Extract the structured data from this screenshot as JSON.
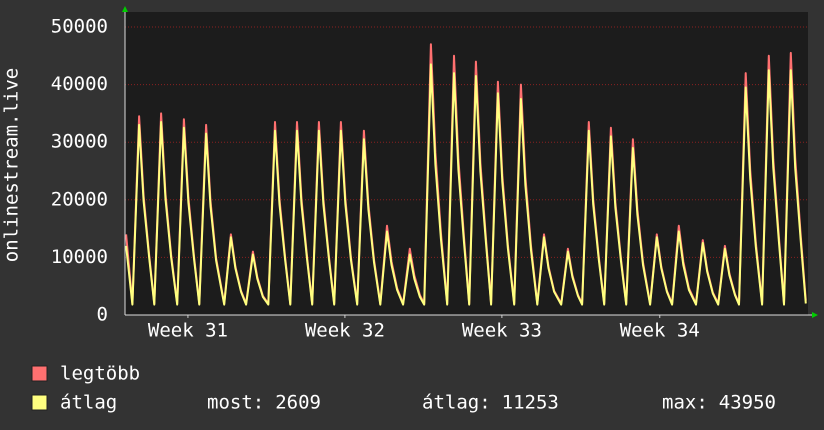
{
  "chart_data": {
    "type": "line",
    "y_label": "onlinestream.live",
    "x": [
      0.05,
      0.33,
      0.63,
      0.83,
      1.08,
      1.31,
      1.61,
      1.81,
      2.06,
      2.33,
      2.63,
      2.83,
      3.08,
      3.32,
      3.62,
      3.82,
      4.07,
      4.43,
      4.73,
      4.93,
      5.18,
      5.41,
      5.71,
      5.91,
      6.16,
      6.4,
      6.7,
      6.9,
      7.15,
      7.38,
      7.68,
      7.88,
      8.13,
      8.36,
      8.66,
      8.86,
      9.11,
      9.34,
      9.64,
      9.84,
      10.09,
      10.37,
      10.67,
      10.87,
      11.12,
      11.4,
      11.7,
      11.9,
      12.15,
      12.42,
      12.72,
      12.92,
      13.17,
      13.36,
      13.66,
      13.86,
      14.11,
      14.39,
      14.69,
      14.89,
      15.14,
      15.37,
      15.67,
      15.87,
      16.12,
      16.35,
      16.65,
      16.85,
      17.1,
      17.38,
      17.68,
      17.88,
      18.13,
      18.41,
      18.71,
      18.91,
      19.16,
      19.48,
      19.78,
      19.98,
      20.23,
      20.41,
      20.71,
      20.91,
      21.16,
      21.4,
      21.7,
      21.9,
      22.15,
      22.38,
      22.68,
      22.88,
      23.13,
      23.45,
      23.75,
      23.95,
      24.2,
      24.43,
      24.73,
      24.93,
      25.18,
      25.5,
      25.8,
      26,
      26.25,
      26.49,
      26.79,
      26.99,
      27.24,
      27.42,
      27.72,
      27.92,
      28.17,
      28.45,
      28.75,
      28.95,
      29.2,
      29.43,
      29.73,
      29.93,
      30.18,
      30.4
    ],
    "series": [
      {
        "name": "legtöbb",
        "color": "#ff7070",
        "values": [
          14000,
          2000,
          34500,
          20700,
          10350,
          2000,
          35000,
          21000,
          10500,
          2000,
          34000,
          20400,
          10200,
          2000,
          33000,
          19800,
          9900,
          2000,
          14000,
          8400,
          4200,
          2000,
          11000,
          6600,
          3300,
          2000,
          33500,
          20100,
          10050,
          2000,
          33500,
          20100,
          10050,
          2000,
          33500,
          20100,
          10050,
          2000,
          33500,
          20100,
          10050,
          2000,
          32000,
          19200,
          9600,
          2000,
          15500,
          9300,
          4650,
          2000,
          11500,
          6900,
          3450,
          2000,
          47000,
          28200,
          14100,
          2000,
          45000,
          27000,
          13500,
          2000,
          44000,
          26400,
          13200,
          2000,
          40500,
          24300,
          12150,
          2000,
          40000,
          24000,
          12000,
          2000,
          14000,
          8400,
          4200,
          2000,
          11500,
          6900,
          3450,
          2000,
          33500,
          20100,
          10050,
          2000,
          32500,
          19500,
          9750,
          2000,
          30500,
          18300,
          9150,
          2000,
          14000,
          8400,
          4200,
          2000,
          15500,
          9300,
          4650,
          2000,
          13000,
          7800,
          3900,
          2000,
          12000,
          7200,
          3600,
          2000,
          42000,
          25200,
          12600,
          2000,
          45000,
          27000,
          13500,
          2000,
          45500,
          27300,
          13650,
          2500
        ]
      },
      {
        "name": "átlag",
        "color": "#ffff80",
        "values": [
          12000,
          1800,
          33000,
          19800,
          9900,
          1800,
          33500,
          20100,
          10050,
          1800,
          32500,
          19500,
          9750,
          1800,
          31500,
          18900,
          9450,
          1800,
          13500,
          8100,
          4050,
          1800,
          10500,
          6300,
          3150,
          1800,
          32000,
          19200,
          9600,
          1800,
          32000,
          19200,
          9600,
          1800,
          32000,
          19200,
          9600,
          1800,
          32000,
          19200,
          9600,
          1800,
          30500,
          18300,
          9150,
          1800,
          14500,
          8700,
          4350,
          1800,
          10500,
          6300,
          3150,
          1800,
          43500,
          26100,
          13050,
          1800,
          42000,
          25200,
          12600,
          1800,
          41500,
          24900,
          12450,
          1800,
          38500,
          23100,
          11550,
          1800,
          37500,
          22500,
          11250,
          1800,
          13500,
          8100,
          4050,
          1800,
          11000,
          6600,
          3300,
          1800,
          32000,
          19200,
          9600,
          1800,
          31000,
          18600,
          9300,
          1800,
          29000,
          17400,
          8700,
          1800,
          13500,
          8100,
          4050,
          1800,
          14500,
          8700,
          4350,
          1800,
          12500,
          7500,
          3750,
          1800,
          11500,
          6900,
          3450,
          1800,
          39500,
          23700,
          11850,
          1800,
          42500,
          25500,
          12750,
          1800,
          42500,
          25500,
          12750,
          2000
        ]
      }
    ],
    "xlim": [
      0,
      30.5
    ],
    "xticks": [
      {
        "value": 2.81,
        "label": "Week 31"
      },
      {
        "value": 9.82,
        "label": "Week 32"
      },
      {
        "value": 16.83,
        "label": "Week 33"
      },
      {
        "value": 23.88,
        "label": "Week 34"
      }
    ],
    "ylim": [
      0,
      50000
    ],
    "yticks": [
      0,
      10000,
      20000,
      30000,
      40000,
      50000
    ],
    "grid": true,
    "stats": [
      {
        "label": "most:",
        "value": 2609
      },
      {
        "label": "átlag:",
        "value": 11253
      },
      {
        "label": "max:",
        "value": 43950
      }
    ]
  }
}
